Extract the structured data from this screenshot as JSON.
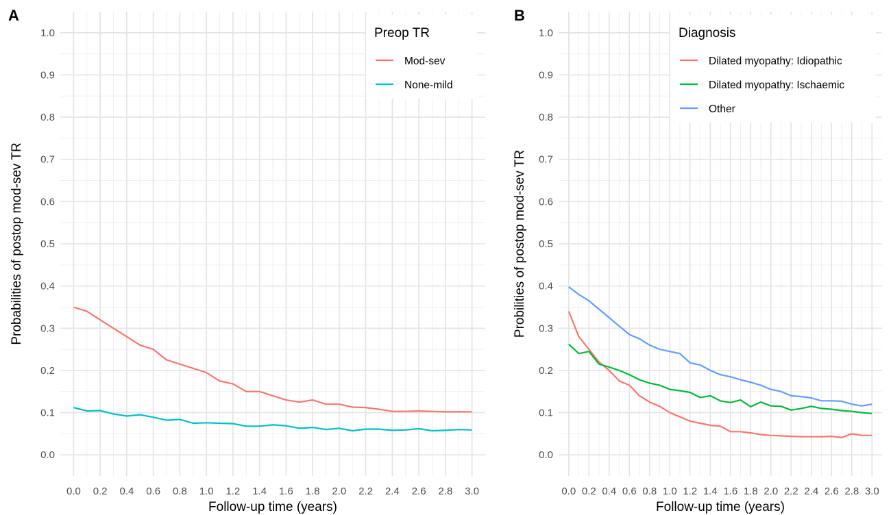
{
  "chart_data": [
    {
      "panel_label": "A",
      "type": "line",
      "xlabel": "Follow-up time (years)",
      "ylabel": "Probabilities of postop mod-sev TR",
      "xlim": [
        -0.1,
        3.1
      ],
      "ylim": [
        -0.05,
        1.05
      ],
      "x_ticks": [
        "0.0",
        "0.2",
        "0.4",
        "0.6",
        "0.8",
        "1.0",
        "1.2",
        "1.4",
        "1.6",
        "1.8",
        "2.0",
        "2.2",
        "2.4",
        "2.6",
        "2.8",
        "3.0"
      ],
      "y_ticks": [
        "0.0",
        "0.1",
        "0.2",
        "0.3",
        "0.4",
        "0.5",
        "0.6",
        "0.7",
        "0.8",
        "0.9",
        "1.0"
      ],
      "grid": true,
      "legend_title": "Preop TR",
      "legend_position": "top-right",
      "series": [
        {
          "name": "Mod-sev",
          "color": "#F8766D",
          "x": [
            0.0,
            0.1,
            0.2,
            0.3,
            0.4,
            0.5,
            0.6,
            0.7,
            0.8,
            0.9,
            1.0,
            1.1,
            1.2,
            1.3,
            1.4,
            1.5,
            1.6,
            1.7,
            1.8,
            1.9,
            2.0,
            2.1,
            2.2,
            2.3,
            2.4,
            2.5,
            2.6,
            2.7,
            2.8,
            2.9,
            3.0
          ],
          "y": [
            0.35,
            0.34,
            0.32,
            0.3,
            0.28,
            0.26,
            0.25,
            0.225,
            0.215,
            0.205,
            0.195,
            0.175,
            0.168,
            0.15,
            0.15,
            0.14,
            0.13,
            0.125,
            0.13,
            0.12,
            0.12,
            0.113,
            0.112,
            0.108,
            0.103,
            0.103,
            0.104,
            0.103,
            0.102,
            0.102,
            0.102
          ]
        },
        {
          "name": "None-mild",
          "color": "#00BFC4",
          "x": [
            0.0,
            0.1,
            0.2,
            0.3,
            0.4,
            0.5,
            0.6,
            0.7,
            0.8,
            0.9,
            1.0,
            1.1,
            1.2,
            1.3,
            1.4,
            1.5,
            1.6,
            1.7,
            1.8,
            1.9,
            2.0,
            2.1,
            2.2,
            2.3,
            2.4,
            2.5,
            2.6,
            2.7,
            2.8,
            2.9,
            3.0
          ],
          "y": [
            0.112,
            0.104,
            0.105,
            0.097,
            0.092,
            0.095,
            0.089,
            0.082,
            0.084,
            0.075,
            0.076,
            0.075,
            0.074,
            0.068,
            0.068,
            0.071,
            0.069,
            0.063,
            0.065,
            0.06,
            0.063,
            0.057,
            0.061,
            0.061,
            0.058,
            0.059,
            0.062,
            0.057,
            0.058,
            0.06,
            0.059
          ]
        }
      ]
    },
    {
      "panel_label": "B",
      "type": "line",
      "xlabel": "Follow-up time (years)",
      "ylabel": "Probilities of postop mod-sev TR",
      "xlim": [
        -0.1,
        3.1
      ],
      "ylim": [
        -0.05,
        1.05
      ],
      "x_ticks": [
        "0.0",
        "0.2",
        "0.4",
        "0.6",
        "0.8",
        "1.0",
        "1.2",
        "1.4",
        "1.6",
        "1.8",
        "2.0",
        "2.2",
        "2.4",
        "2.6",
        "2.8",
        "3.0"
      ],
      "y_ticks": [
        "0.0",
        "0.1",
        "0.2",
        "0.3",
        "0.4",
        "0.5",
        "0.6",
        "0.7",
        "0.8",
        "0.9",
        "1.0"
      ],
      "grid": true,
      "legend_title": "Diagnosis",
      "legend_position": "top-right",
      "series": [
        {
          "name": "Dilated myopathy: Idiopathic",
          "color": "#F8766D",
          "x": [
            0.0,
            0.1,
            0.2,
            0.3,
            0.4,
            0.5,
            0.6,
            0.7,
            0.8,
            0.9,
            1.0,
            1.1,
            1.2,
            1.3,
            1.4,
            1.5,
            1.6,
            1.7,
            1.8,
            1.9,
            2.0,
            2.1,
            2.2,
            2.3,
            2.4,
            2.5,
            2.6,
            2.7,
            2.8,
            2.9,
            3.0
          ],
          "y": [
            0.34,
            0.28,
            0.25,
            0.22,
            0.2,
            0.175,
            0.165,
            0.14,
            0.125,
            0.115,
            0.1,
            0.09,
            0.08,
            0.075,
            0.07,
            0.068,
            0.055,
            0.055,
            0.052,
            0.048,
            0.046,
            0.045,
            0.044,
            0.043,
            0.043,
            0.043,
            0.044,
            0.041,
            0.05,
            0.046,
            0.046
          ]
        },
        {
          "name": "Dilated myopathy: Ischaemic",
          "color": "#00BA38",
          "x": [
            0.0,
            0.1,
            0.2,
            0.3,
            0.4,
            0.5,
            0.6,
            0.7,
            0.8,
            0.9,
            1.0,
            1.1,
            1.2,
            1.3,
            1.4,
            1.5,
            1.6,
            1.7,
            1.8,
            1.9,
            2.0,
            2.1,
            2.2,
            2.3,
            2.4,
            2.5,
            2.6,
            2.7,
            2.8,
            2.9,
            3.0
          ],
          "y": [
            0.262,
            0.24,
            0.245,
            0.215,
            0.208,
            0.2,
            0.19,
            0.178,
            0.17,
            0.165,
            0.155,
            0.152,
            0.148,
            0.136,
            0.14,
            0.128,
            0.124,
            0.13,
            0.114,
            0.125,
            0.116,
            0.115,
            0.106,
            0.11,
            0.115,
            0.11,
            0.108,
            0.105,
            0.103,
            0.1,
            0.098
          ]
        },
        {
          "name": "Other",
          "color": "#619CFF",
          "x": [
            0.0,
            0.1,
            0.2,
            0.3,
            0.4,
            0.5,
            0.6,
            0.7,
            0.8,
            0.9,
            1.0,
            1.1,
            1.2,
            1.3,
            1.4,
            1.5,
            1.6,
            1.7,
            1.8,
            1.9,
            2.0,
            2.1,
            2.2,
            2.3,
            2.4,
            2.5,
            2.6,
            2.7,
            2.8,
            2.9,
            3.0
          ],
          "y": [
            0.398,
            0.38,
            0.365,
            0.345,
            0.325,
            0.305,
            0.285,
            0.275,
            0.26,
            0.25,
            0.245,
            0.24,
            0.218,
            0.213,
            0.2,
            0.19,
            0.185,
            0.178,
            0.172,
            0.165,
            0.155,
            0.15,
            0.14,
            0.138,
            0.135,
            0.128,
            0.128,
            0.127,
            0.12,
            0.116,
            0.12
          ]
        }
      ]
    }
  ]
}
